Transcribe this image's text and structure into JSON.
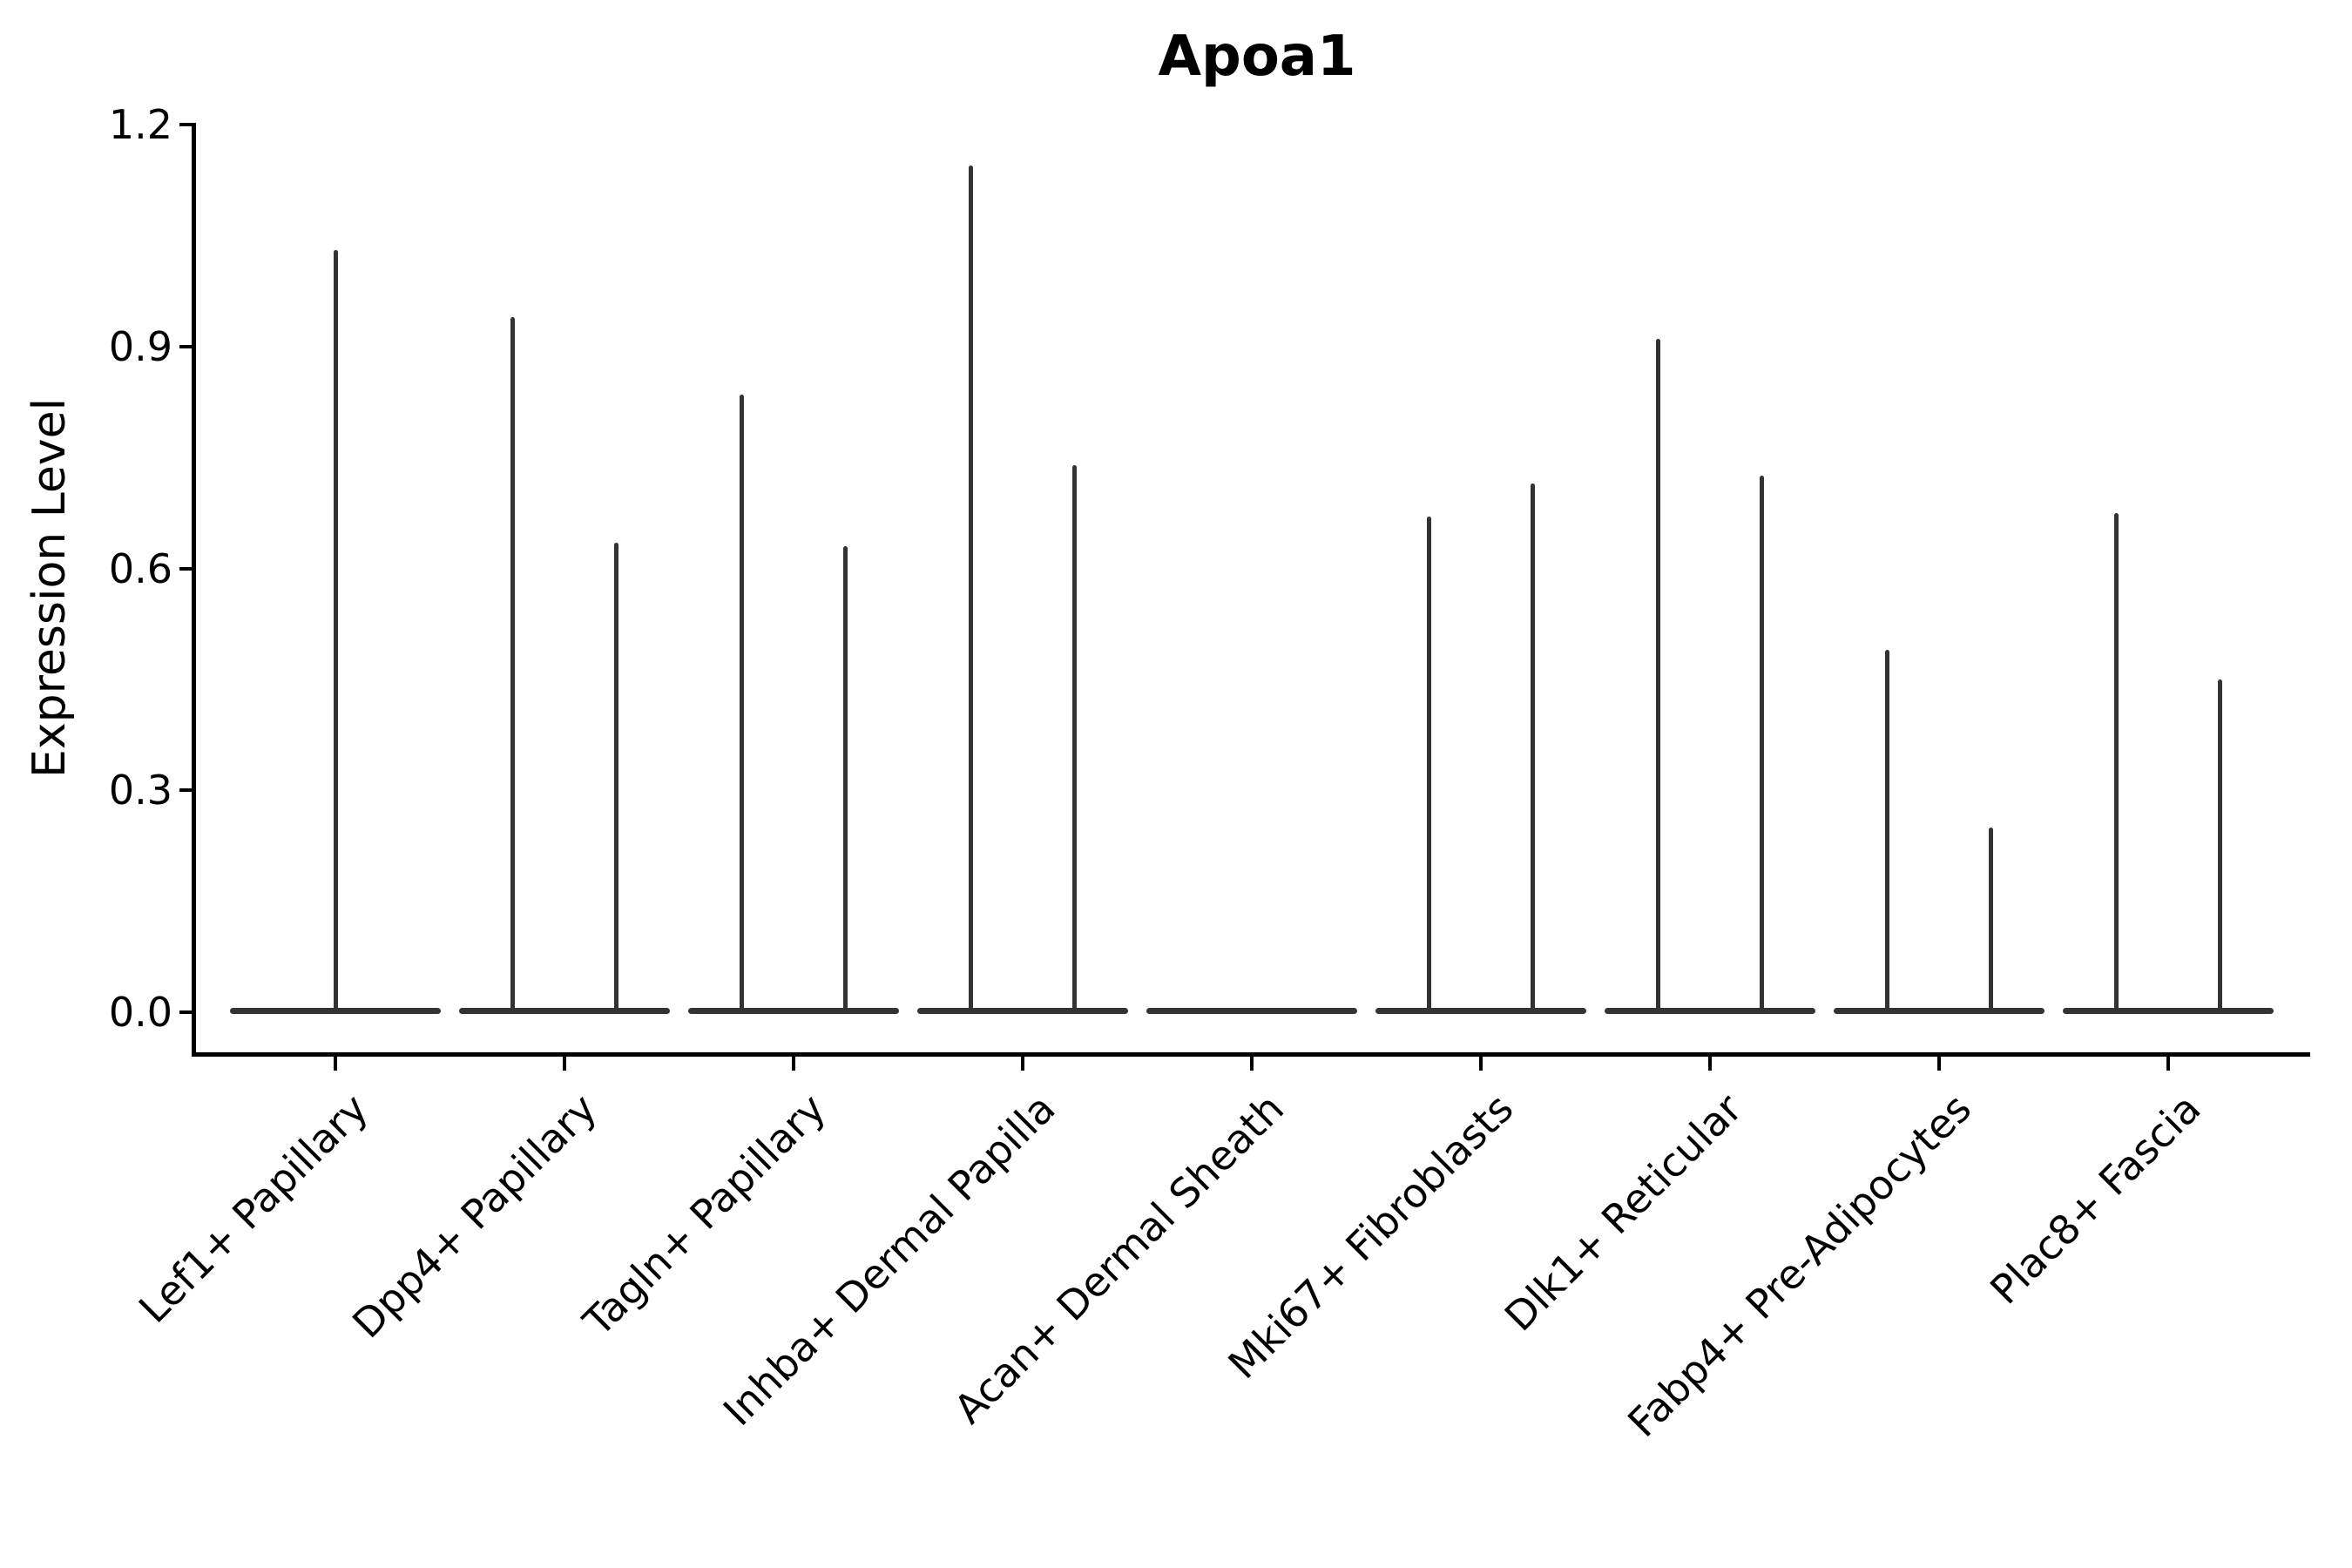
{
  "chart_data": {
    "type": "violin",
    "title": "Apoa1",
    "ylabel": "Expression Level",
    "xlabel": "",
    "ylim": [
      0.0,
      1.2
    ],
    "yticks": [
      0.0,
      0.3,
      0.6,
      0.9,
      1.2
    ],
    "grid": false,
    "legend": "none",
    "style_note": "Collapsed violins: flat density base at 0 with thin vertical density spikes; up to two violins per category",
    "categories": [
      {
        "label": "Lef1+ Papillary",
        "spike_peaks": [
          1.03
        ]
      },
      {
        "label": "Dpp4+ Papillary",
        "spike_peaks": [
          0.94,
          0.635
        ]
      },
      {
        "label": "Tagln+ Papillary",
        "spike_peaks": [
          0.835,
          0.63
        ]
      },
      {
        "label": "Inhba+ Dermal Papilla",
        "spike_peaks": [
          1.145,
          0.74
        ]
      },
      {
        "label": "Acan+ Dermal Sheath",
        "spike_peaks": []
      },
      {
        "label": "Mki67+ Fibroblasts",
        "spike_peaks": [
          0.67,
          0.715
        ]
      },
      {
        "label": "Dlk1+ Reticular",
        "spike_peaks": [
          0.91,
          0.725
        ]
      },
      {
        "label": "Fabp4+ Pre-Adipocytes",
        "spike_peaks": [
          0.49,
          0.25
        ]
      },
      {
        "label": "Plac8+ Fascia",
        "spike_peaks": [
          0.675,
          0.45
        ]
      }
    ],
    "colors": {
      "violin": "#333333",
      "axis": "#000000",
      "text": "#000000",
      "background": "#ffffff"
    }
  }
}
